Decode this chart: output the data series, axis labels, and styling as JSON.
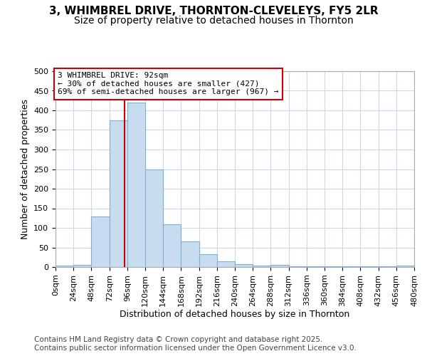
{
  "title": "3, WHIMBREL DRIVE, THORNTON-CLEVELEYS, FY5 2LR",
  "subtitle": "Size of property relative to detached houses in Thornton",
  "xlabel": "Distribution of detached houses by size in Thornton",
  "ylabel": "Number of detached properties",
  "bin_edges": [
    0,
    24,
    48,
    72,
    96,
    120,
    144,
    168,
    192,
    216,
    240,
    264,
    288,
    312,
    336,
    360,
    384,
    408,
    432,
    456,
    480
  ],
  "counts": [
    3,
    5,
    130,
    375,
    420,
    250,
    110,
    65,
    32,
    15,
    8,
    3,
    5,
    1,
    1,
    1,
    1,
    1,
    1,
    3
  ],
  "bar_color": "#c8dcf0",
  "bar_edge_color": "#7db0d5",
  "vline_x": 92,
  "vline_color": "#cc0000",
  "annotation_text": "3 WHIMBREL DRIVE: 92sqm\n← 30% of detached houses are smaller (427)\n69% of semi-detached houses are larger (967) →",
  "annotation_box_facecolor": "#ffffff",
  "annotation_box_edgecolor": "#cc0000",
  "ylim": [
    0,
    500
  ],
  "yticks": [
    0,
    50,
    100,
    150,
    200,
    250,
    300,
    350,
    400,
    450,
    500
  ],
  "footer": "Contains HM Land Registry data © Crown copyright and database right 2025.\nContains public sector information licensed under the Open Government Licence v3.0.",
  "bg_color": "#ffffff",
  "plot_bg_color": "#ffffff",
  "grid_color": "#c8d8ec",
  "title_fontsize": 11,
  "subtitle_fontsize": 10,
  "axis_label_fontsize": 9,
  "tick_fontsize": 8,
  "annotation_fontsize": 8,
  "footer_fontsize": 7.5
}
